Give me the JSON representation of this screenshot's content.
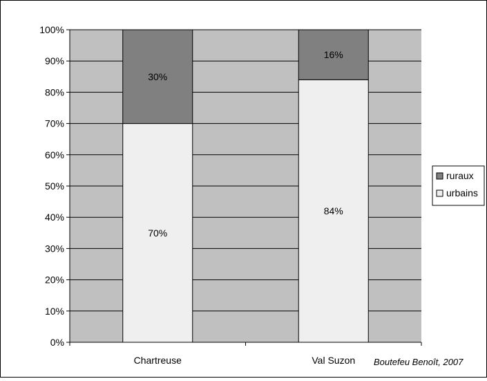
{
  "chart_data": {
    "type": "bar",
    "stacked": true,
    "percent": true,
    "categories": [
      "Chartreuse",
      "Val Suzon"
    ],
    "series": [
      {
        "name": "urbains",
        "values": [
          70,
          84
        ],
        "labels": [
          "70%",
          "84%"
        ],
        "color": "#efefef"
      },
      {
        "name": "ruraux",
        "values": [
          30,
          16
        ],
        "labels": [
          "30%",
          "16%"
        ],
        "color": "#808080"
      }
    ],
    "ylim": [
      0,
      100
    ],
    "yticks": [
      "0%",
      "10%",
      "20%",
      "30%",
      "40%",
      "50%",
      "60%",
      "70%",
      "80%",
      "90%",
      "100%"
    ],
    "grid": true,
    "plot_background": "#c0c0c0",
    "legend": {
      "position": "right",
      "entries": [
        "ruraux",
        "urbains"
      ]
    },
    "title": "",
    "xlabel": "",
    "ylabel": ""
  },
  "credit": "Boutefeu Benoît, 2007"
}
